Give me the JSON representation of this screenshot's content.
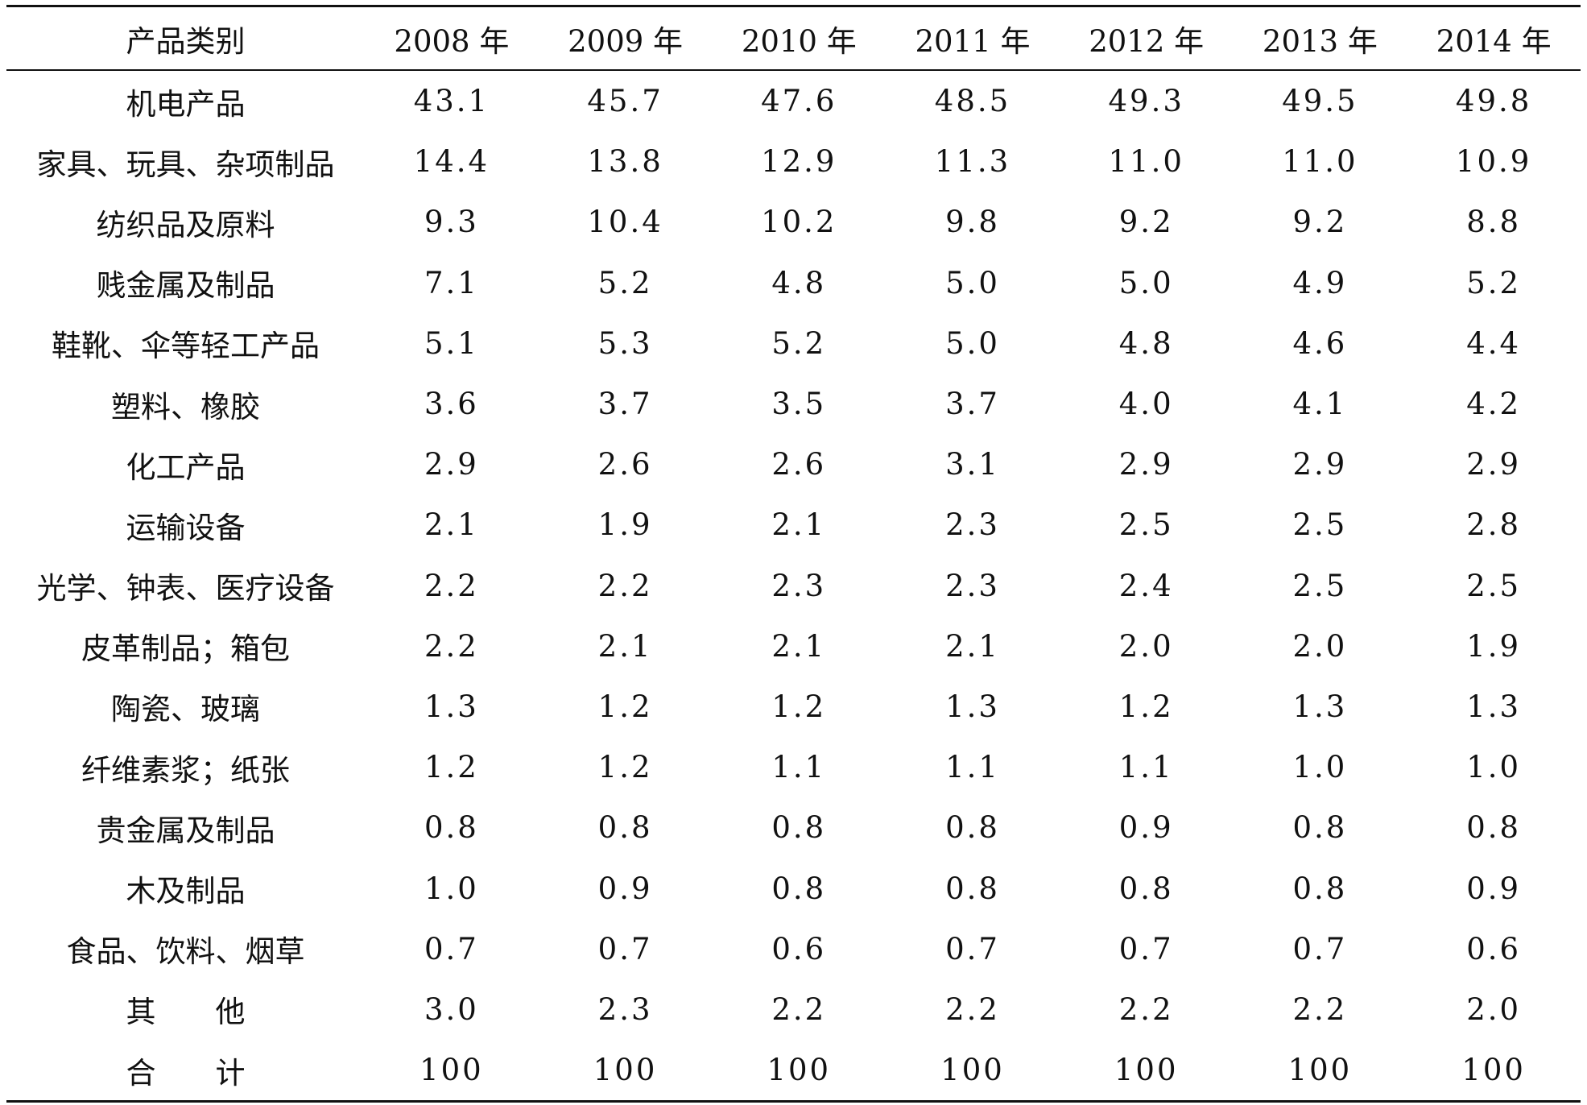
{
  "table": {
    "headers": [
      "产品类别",
      "2008 年",
      "2009 年",
      "2010 年",
      "2011 年",
      "2012 年",
      "2013 年",
      "2014 年"
    ],
    "rows": [
      [
        "机电产品",
        "43.1",
        "45.7",
        "47.6",
        "48.5",
        "49.3",
        "49.5",
        "49.8"
      ],
      [
        "家具、玩具、杂项制品",
        "14.4",
        "13.8",
        "12.9",
        "11.3",
        "11.0",
        "11.0",
        "10.9"
      ],
      [
        "纺织品及原料",
        "9.3",
        "10.4",
        "10.2",
        "9.8",
        "9.2",
        "9.2",
        "8.8"
      ],
      [
        "贱金属及制品",
        "7.1",
        "5.2",
        "4.8",
        "5.0",
        "5.0",
        "4.9",
        "5.2"
      ],
      [
        "鞋靴、伞等轻工产品",
        "5.1",
        "5.3",
        "5.2",
        "5.0",
        "4.8",
        "4.6",
        "4.4"
      ],
      [
        "塑料、橡胶",
        "3.6",
        "3.7",
        "3.5",
        "3.7",
        "4.0",
        "4.1",
        "4.2"
      ],
      [
        "化工产品",
        "2.9",
        "2.6",
        "2.6",
        "3.1",
        "2.9",
        "2.9",
        "2.9"
      ],
      [
        "运输设备",
        "2.1",
        "1.9",
        "2.1",
        "2.3",
        "2.5",
        "2.5",
        "2.8"
      ],
      [
        "光学、钟表、医疗设备",
        "2.2",
        "2.2",
        "2.3",
        "2.3",
        "2.4",
        "2.5",
        "2.5"
      ],
      [
        "皮革制品；箱包",
        "2.2",
        "2.1",
        "2.1",
        "2.1",
        "2.0",
        "2.0",
        "1.9"
      ],
      [
        "陶瓷、玻璃",
        "1.3",
        "1.2",
        "1.2",
        "1.3",
        "1.2",
        "1.3",
        "1.3"
      ],
      [
        "纤维素浆；纸张",
        "1.2",
        "1.2",
        "1.1",
        "1.1",
        "1.1",
        "1.0",
        "1.0"
      ],
      [
        "贵金属及制品",
        "0.8",
        "0.8",
        "0.8",
        "0.8",
        "0.9",
        "0.8",
        "0.8"
      ],
      [
        "木及制品",
        "1.0",
        "0.9",
        "0.8",
        "0.8",
        "0.8",
        "0.8",
        "0.9"
      ],
      [
        "食品、饮料、烟草",
        "0.7",
        "0.7",
        "0.6",
        "0.7",
        "0.7",
        "0.7",
        "0.6"
      ],
      [
        "其　　他",
        "3.0",
        "2.3",
        "2.2",
        "2.2",
        "2.2",
        "2.2",
        "2.0"
      ],
      [
        "合　　计",
        "100",
        "100",
        "100",
        "100",
        "100",
        "100",
        "100"
      ]
    ]
  }
}
